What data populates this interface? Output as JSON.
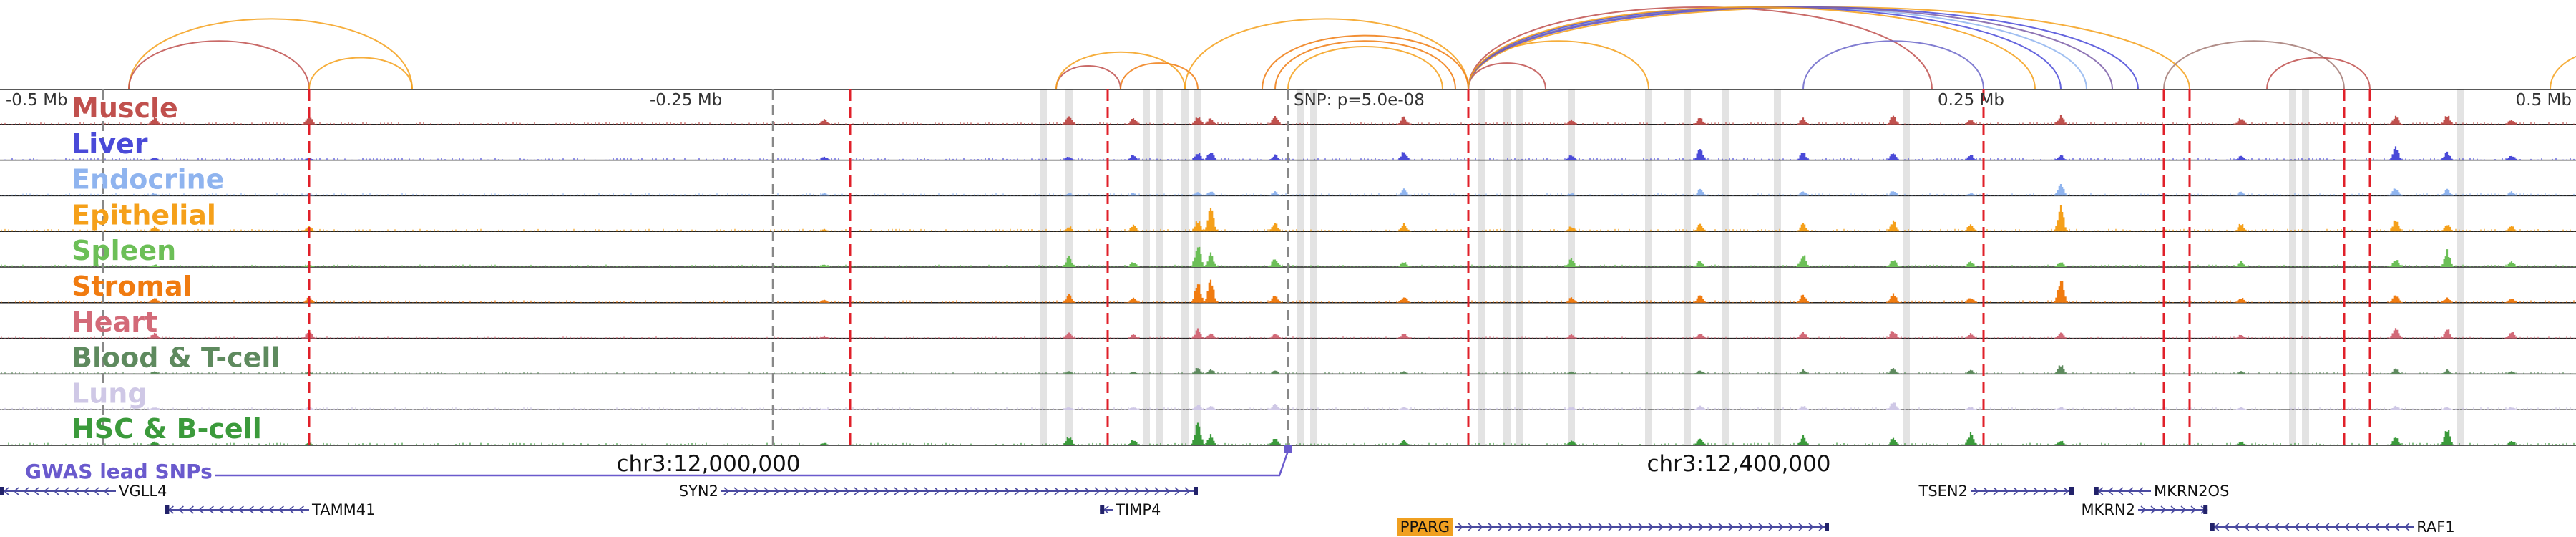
{
  "region": {
    "start": -0.5,
    "end": 0.5,
    "unit": "Mb"
  },
  "axis": {
    "ticks": [
      {
        "pos": -0.5,
        "label": "-0.5 Mb"
      },
      {
        "pos": -0.25,
        "label": "-0.25 Mb"
      },
      {
        "pos": 0.25,
        "label": "0.25 Mb"
      },
      {
        "pos": 0.5,
        "label": "0.5 Mb"
      }
    ],
    "snp": {
      "pos": 0.0,
      "label": "SNP: p=5.0e-08"
    }
  },
  "chart_data": {
    "type": "area",
    "tracks": [
      {
        "name": "Muscle",
        "color": "#c0504d"
      },
      {
        "name": "Liver",
        "color": "#4a4ad8"
      },
      {
        "name": "Endocrine",
        "color": "#8fb4ef"
      },
      {
        "name": "Epithelial",
        "color": "#f5a01a"
      },
      {
        "name": "Spleen",
        "color": "#6cbf57"
      },
      {
        "name": "Stromal",
        "color": "#f07b10"
      },
      {
        "name": "Heart",
        "color": "#d36a78"
      },
      {
        "name": "Blood & T-cell",
        "color": "#5e8a5e"
      },
      {
        "name": "Lung",
        "color": "#cfc8e6"
      },
      {
        "name": "HSC & B-cell",
        "color": "#3b9a3b"
      }
    ],
    "peaks": [
      {
        "x": -0.44,
        "h": [
          0.3,
          0.1,
          0.1,
          0.2,
          0.1,
          0.2,
          0.2,
          0.1,
          0.1,
          0.15
        ]
      },
      {
        "x": -0.38,
        "h": [
          0.35,
          0.1,
          0.1,
          0.2,
          0.1,
          0.2,
          0.3,
          0.1,
          0.1,
          0.1
        ]
      },
      {
        "x": -0.18,
        "h": [
          0.2,
          0.15,
          0.1,
          0.1,
          0.1,
          0.1,
          0.1,
          0.05,
          0.05,
          0.1
        ]
      },
      {
        "x": -0.085,
        "h": [
          0.35,
          0.15,
          0.1,
          0.2,
          0.4,
          0.3,
          0.2,
          0.1,
          0.1,
          0.35
        ]
      },
      {
        "x": -0.06,
        "h": [
          0.25,
          0.2,
          0.1,
          0.25,
          0.2,
          0.2,
          0.15,
          0.1,
          0.1,
          0.2
        ]
      },
      {
        "x": -0.035,
        "h": [
          0.3,
          0.3,
          0.15,
          0.4,
          0.95,
          0.8,
          0.35,
          0.25,
          0.2,
          0.9
        ]
      },
      {
        "x": -0.03,
        "h": [
          0.25,
          0.35,
          0.2,
          0.9,
          0.5,
          0.9,
          0.2,
          0.2,
          0.15,
          0.4
        ]
      },
      {
        "x": -0.005,
        "h": [
          0.3,
          0.2,
          0.15,
          0.35,
          0.35,
          0.3,
          0.2,
          0.15,
          0.2,
          0.3
        ]
      },
      {
        "x": 0.045,
        "h": [
          0.3,
          0.35,
          0.25,
          0.3,
          0.2,
          0.25,
          0.2,
          0.1,
          0.1,
          0.2
        ]
      },
      {
        "x": 0.11,
        "h": [
          0.2,
          0.2,
          0.1,
          0.2,
          0.3,
          0.2,
          0.15,
          0.1,
          0.1,
          0.2
        ]
      },
      {
        "x": 0.16,
        "h": [
          0.25,
          0.45,
          0.25,
          0.3,
          0.25,
          0.3,
          0.2,
          0.15,
          0.15,
          0.3
        ]
      },
      {
        "x": 0.2,
        "h": [
          0.25,
          0.3,
          0.2,
          0.3,
          0.5,
          0.3,
          0.25,
          0.15,
          0.15,
          0.35
        ]
      },
      {
        "x": 0.235,
        "h": [
          0.3,
          0.25,
          0.2,
          0.4,
          0.3,
          0.35,
          0.3,
          0.2,
          0.3,
          0.25
        ]
      },
      {
        "x": 0.265,
        "h": [
          0.2,
          0.2,
          0.1,
          0.3,
          0.2,
          0.2,
          0.2,
          0.15,
          0.1,
          0.45
        ]
      },
      {
        "x": 0.3,
        "h": [
          0.35,
          0.2,
          0.45,
          0.95,
          0.2,
          0.95,
          0.2,
          0.35,
          0.1,
          0.2
        ]
      },
      {
        "x": 0.37,
        "h": [
          0.25,
          0.15,
          0.15,
          0.3,
          0.2,
          0.2,
          0.15,
          0.1,
          0.1,
          0.15
        ]
      },
      {
        "x": 0.43,
        "h": [
          0.3,
          0.55,
          0.35,
          0.45,
          0.3,
          0.35,
          0.45,
          0.2,
          0.15,
          0.3
        ]
      },
      {
        "x": 0.45,
        "h": [
          0.35,
          0.3,
          0.25,
          0.3,
          0.6,
          0.2,
          0.35,
          0.15,
          0.1,
          0.6
        ]
      },
      {
        "x": 0.475,
        "h": [
          0.2,
          0.2,
          0.15,
          0.2,
          0.2,
          0.2,
          0.25,
          0.1,
          0.1,
          0.2
        ]
      }
    ],
    "links": [
      {
        "from": -0.45,
        "to": -0.34,
        "color": "#f5a01a"
      },
      {
        "from": -0.45,
        "to": -0.38,
        "color": "#c0504d"
      },
      {
        "from": -0.38,
        "to": -0.34,
        "color": "#f5a01a"
      },
      {
        "from": -0.09,
        "to": -0.065,
        "color": "#c0504d"
      },
      {
        "from": -0.09,
        "to": -0.04,
        "color": "#f5a01a"
      },
      {
        "from": -0.065,
        "to": -0.035,
        "color": "#f07b10"
      },
      {
        "from": -0.04,
        "to": 0.07,
        "color": "#f5a01a"
      },
      {
        "from": -0.005,
        "to": 0.065,
        "color": "#f07b10"
      },
      {
        "from": 0.0,
        "to": 0.06,
        "color": "#f5a01a"
      },
      {
        "from": -0.01,
        "to": 0.07,
        "color": "#f07b10"
      },
      {
        "from": 0.07,
        "to": 0.1,
        "color": "#c0504d"
      },
      {
        "from": 0.07,
        "to": 0.14,
        "color": "#f5a01a"
      },
      {
        "from": 0.07,
        "to": 0.35,
        "color": "#f5a01a"
      },
      {
        "from": 0.07,
        "to": 0.33,
        "color": "#4a4ad8"
      },
      {
        "from": 0.07,
        "to": 0.31,
        "color": "#8fb4ef"
      },
      {
        "from": 0.07,
        "to": 0.3,
        "color": "#4a4ad8"
      },
      {
        "from": 0.07,
        "to": 0.25,
        "color": "#c0504d"
      },
      {
        "from": 0.07,
        "to": 0.32,
        "color": "#7b5ea8"
      },
      {
        "from": 0.07,
        "to": 0.29,
        "color": "#f5a01a"
      },
      {
        "from": 0.2,
        "to": 0.27,
        "color": "#6b66c9"
      },
      {
        "from": 0.34,
        "to": 0.41,
        "color": "#a37a74"
      },
      {
        "from": 0.38,
        "to": 0.42,
        "color": "#c0504d"
      },
      {
        "from": 0.49,
        "to": 0.55,
        "color": "#f5a01a"
      }
    ],
    "red_lines": [
      -0.38,
      -0.17,
      -0.07,
      0.07,
      0.27,
      0.34,
      0.35,
      0.41,
      0.42
    ],
    "gray_lines": [
      -0.46,
      -0.2,
      0.0
    ],
    "gray_bands": [
      -0.095,
      -0.085,
      -0.055,
      -0.05,
      -0.04,
      -0.035,
      0.005,
      0.01,
      0.075,
      0.085,
      0.09,
      0.11,
      0.14,
      0.155,
      0.17,
      0.19,
      0.24,
      0.39,
      0.395,
      0.455
    ]
  },
  "coordinates": [
    {
      "pos": -0.225,
      "label": "chr3:12,000,000"
    },
    {
      "pos": 0.175,
      "label": "chr3:12,400,000"
    }
  ],
  "gwas": {
    "label": "GWAS lead SNPs",
    "color": "#6a5acd"
  },
  "genes": [
    {
      "name": "VGLL4",
      "start": -0.5,
      "end": -0.455,
      "row": 0,
      "dir": "<",
      "label_side": "right"
    },
    {
      "name": "TAMM41",
      "start": -0.436,
      "end": -0.38,
      "row": 1,
      "dir": "<",
      "label_side": "right"
    },
    {
      "name": "SYN2",
      "start": -0.22,
      "end": -0.035,
      "row": 0,
      "dir": ">",
      "label_side": "left"
    },
    {
      "name": "TIMP4",
      "start": -0.073,
      "end": -0.068,
      "row": 1,
      "dir": "<",
      "label_side": "right"
    },
    {
      "name": "PPARG",
      "start": 0.065,
      "end": 0.21,
      "row": 2,
      "dir": ">",
      "label_side": "left",
      "highlight": "#f0a020"
    },
    {
      "name": "TSEN2",
      "start": 0.265,
      "end": 0.305,
      "row": 0,
      "dir": ">",
      "label_side": "left"
    },
    {
      "name": "MKRN2OS",
      "start": 0.313,
      "end": 0.335,
      "row": 0,
      "dir": "<",
      "label_side": "right"
    },
    {
      "name": "MKRN2",
      "start": 0.33,
      "end": 0.357,
      "row": 1,
      "dir": ">",
      "label_side": "left"
    },
    {
      "name": "RAF1",
      "start": 0.358,
      "end": 0.437,
      "row": 2,
      "dir": "<",
      "label_side": "right"
    }
  ]
}
